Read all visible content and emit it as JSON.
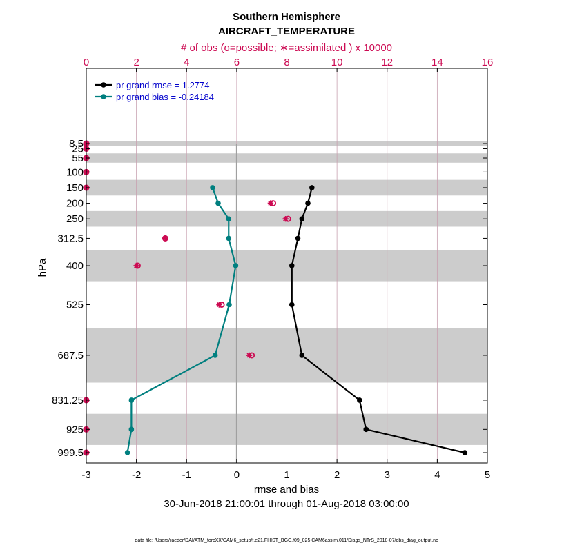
{
  "chart_data": {
    "type": "line",
    "title": "Southern Hemisphere",
    "subtitle": "AIRCRAFT_TEMPERATURE",
    "top_axis_label": "# of obs (o=possible; ∗=assimilated ) x 10000",
    "xlabel": "rmse and bias",
    "ylabel": "hPa",
    "date_range": "30-Jun-2018 21:00:01 through 01-Aug-2018 03:00:00",
    "footer": "data file: /Users/raeder/DAI/ATM_forcXX/CAM6_setup/f.e21.FHIST_BGC.f09_025.CAM6assim.011/Diags_NTrS_2018-07/obs_diag_output.nc",
    "xlim": [
      -3,
      5
    ],
    "x_ticks": [
      "-3",
      "-2",
      "-1",
      "0",
      "1",
      "2",
      "3",
      "4",
      "5"
    ],
    "top_xlim": [
      0,
      16
    ],
    "top_ticks": [
      "0",
      "2",
      "4",
      "6",
      "8",
      "10",
      "12",
      "14",
      "16"
    ],
    "levels": [
      "8.5",
      "25",
      "55",
      "100",
      "150",
      "200",
      "250",
      "312.5",
      "400",
      "525",
      "687.5",
      "831.25",
      "925",
      "999.5"
    ],
    "shaded_bands_hPa": [
      [
        0,
        17
      ],
      [
        40,
        70
      ],
      [
        125,
        175
      ],
      [
        225,
        275
      ],
      [
        350,
        450
      ],
      [
        600,
        775
      ],
      [
        875,
        975
      ]
    ],
    "legend": {
      "position": "top-left",
      "entries": [
        "pr grand rmse = 1.2774",
        "pr grand bias = -0.24184"
      ]
    },
    "series": [
      {
        "name": "pr grand rmse = 1.2774",
        "color": "#000000",
        "points": [
          [
            1.5,
            150
          ],
          [
            1.42,
            200
          ],
          [
            1.3,
            250
          ],
          [
            1.22,
            312.5
          ],
          [
            1.1,
            400
          ],
          [
            1.1,
            525
          ],
          [
            1.3,
            687.5
          ],
          [
            2.45,
            831.25
          ],
          [
            2.58,
            925
          ],
          [
            4.55,
            999.5
          ]
        ]
      },
      {
        "name": "pr grand bias = -0.24184",
        "color": "#007f7f",
        "points": [
          [
            -0.48,
            150
          ],
          [
            -0.37,
            200
          ],
          [
            -0.16,
            250
          ],
          [
            -0.16,
            312.5
          ],
          [
            -0.02,
            400
          ],
          [
            -0.15,
            525
          ],
          [
            -0.43,
            687.5
          ],
          [
            -2.1,
            831.25
          ],
          [
            -2.1,
            925
          ],
          [
            -2.18,
            999.5
          ]
        ]
      }
    ],
    "obs_counts_x10000": {
      "possible": [
        [
          0,
          8.5
        ],
        [
          0,
          25
        ],
        [
          0,
          55
        ],
        [
          0,
          100
        ],
        [
          0,
          150
        ],
        [
          7.45,
          200
        ],
        [
          8.05,
          250
        ],
        [
          3.15,
          312.5
        ],
        [
          2.05,
          400
        ],
        [
          5.4,
          525
        ],
        [
          6.6,
          687.5
        ],
        [
          0,
          831.25
        ],
        [
          0,
          925
        ],
        [
          0,
          999.5
        ]
      ],
      "assimilated": [
        [
          0,
          8.5
        ],
        [
          0,
          25
        ],
        [
          0,
          55
        ],
        [
          0,
          100
        ],
        [
          0,
          150
        ],
        [
          7.35,
          200
        ],
        [
          7.95,
          250
        ],
        [
          3.15,
          312.5
        ],
        [
          2.0,
          400
        ],
        [
          5.3,
          525
        ],
        [
          6.5,
          687.5
        ],
        [
          0,
          831.25
        ],
        [
          0,
          925
        ],
        [
          0,
          999.5
        ]
      ]
    },
    "colors": {
      "obs": "#cc0a52",
      "rmse": "#000000",
      "bias": "#007f7f",
      "legend_text": "#0000cc",
      "band": "#cccccc",
      "grid": "#c8a0b0"
    }
  }
}
